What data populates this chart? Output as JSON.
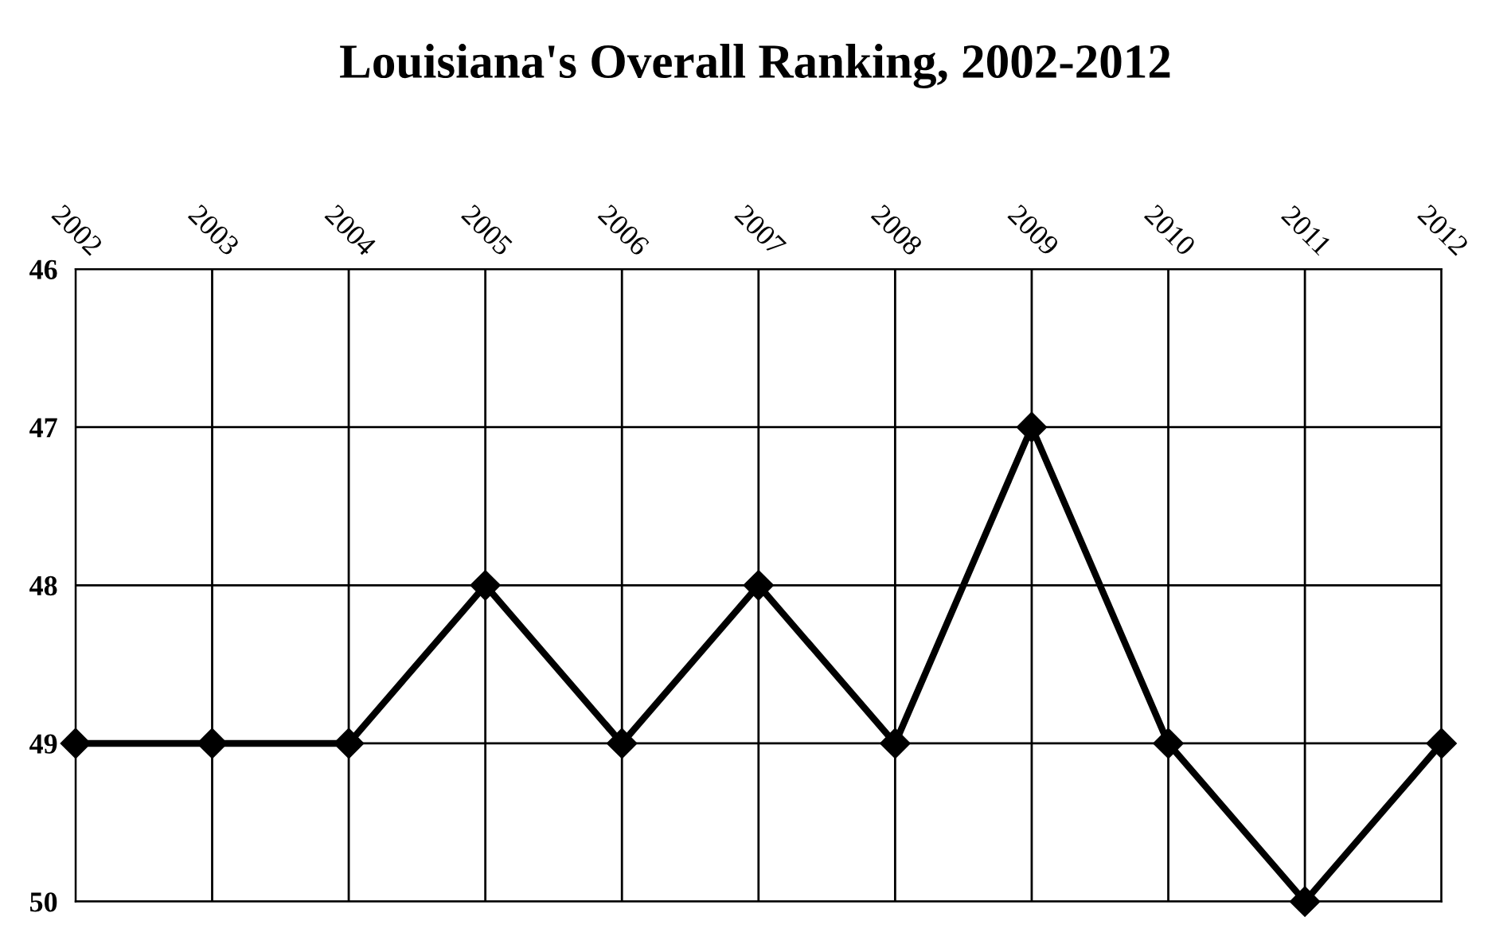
{
  "chart_data": {
    "type": "line",
    "title": "Louisiana's Overall Ranking, 2002-2012",
    "categories": [
      "2002",
      "2003",
      "2004",
      "2005",
      "2006",
      "2007",
      "2008",
      "2009",
      "2010",
      "2011",
      "2012"
    ],
    "series": [
      {
        "color": "#000000",
        "values": [
          49,
          49,
          49,
          48,
          49,
          48,
          49,
          47,
          49,
          50,
          49
        ]
      }
    ],
    "ylim": [
      50,
      46
    ],
    "yticks": [
      46,
      47,
      48,
      49,
      50
    ],
    "grid": true,
    "marker": "diamond",
    "line_style": "solid"
  }
}
